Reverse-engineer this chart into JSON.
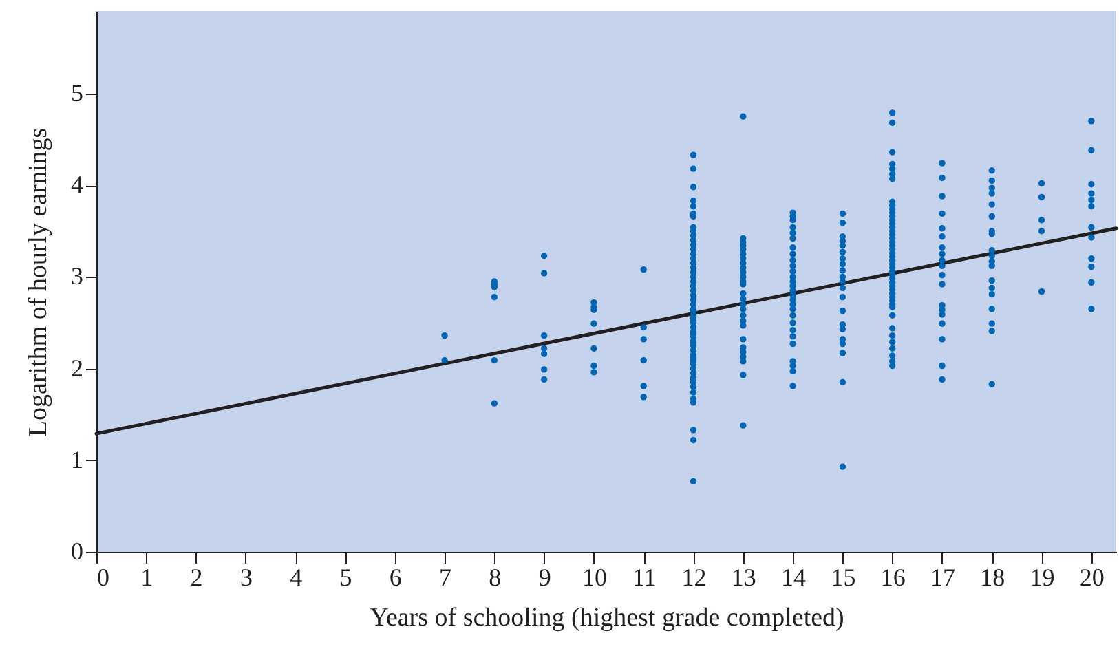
{
  "chart_data": {
    "type": "scatter",
    "xlabel": "Years of schooling (highest grade completed)",
    "ylabel": "Logarithm of hourly earnings",
    "xlim": [
      0,
      20.5
    ],
    "ylim": [
      0,
      5.9
    ],
    "xticks": [
      0,
      1,
      2,
      3,
      4,
      5,
      6,
      7,
      8,
      9,
      10,
      11,
      12,
      13,
      14,
      15,
      16,
      17,
      18,
      19,
      20
    ],
    "yticks": [
      {
        "value": 0,
        "label": "0"
      },
      {
        "value": 1,
        "label": "1"
      },
      {
        "value": 2,
        "label": "2"
      },
      {
        "value": 3,
        "label": "3"
      },
      {
        "value": 4,
        "label": "4"
      },
      {
        "value": 5,
        "label": "5"
      }
    ],
    "grid": false,
    "series": [
      {
        "color": "#0066b3",
        "marker": "circle",
        "x": [
          7,
          7,
          8,
          8,
          8,
          8,
          8,
          8,
          9,
          9,
          9,
          9,
          9,
          9,
          9,
          10,
          10,
          10,
          10,
          10,
          10,
          10,
          11,
          11,
          11,
          11,
          11,
          11,
          12,
          12,
          12,
          12,
          12,
          12,
          12,
          12,
          12,
          12,
          12,
          12,
          12,
          12,
          12,
          12,
          12,
          12,
          12,
          12,
          12,
          12,
          12,
          12,
          12,
          12,
          12,
          12,
          12,
          12,
          12,
          12,
          12,
          12,
          12,
          12,
          12,
          12,
          12,
          12,
          12,
          12,
          12,
          12,
          12,
          12,
          12,
          12,
          12,
          12,
          12,
          12,
          12,
          12,
          12,
          12,
          12,
          13,
          13,
          13,
          13,
          13,
          13,
          13,
          13,
          13,
          13,
          13,
          13,
          13,
          13,
          13,
          13,
          13,
          13,
          13,
          13,
          13,
          13,
          13,
          13,
          13,
          13,
          13,
          14,
          14,
          14,
          14,
          14,
          14,
          14,
          14,
          14,
          14,
          14,
          14,
          14,
          14,
          14,
          14,
          14,
          14,
          14,
          14,
          14,
          14,
          14,
          14,
          14,
          14,
          14,
          14,
          15,
          15,
          15,
          15,
          15,
          15,
          15,
          15,
          15,
          15,
          15,
          15,
          15,
          15,
          15,
          15,
          15,
          15,
          15,
          15,
          15,
          16,
          16,
          16,
          16,
          16,
          16,
          16,
          16,
          16,
          16,
          16,
          16,
          16,
          16,
          16,
          16,
          16,
          16,
          16,
          16,
          16,
          16,
          16,
          16,
          16,
          16,
          16,
          16,
          16,
          16,
          16,
          16,
          16,
          16,
          16,
          16,
          16,
          16,
          16,
          16,
          16,
          16,
          16,
          16,
          16,
          17,
          17,
          17,
          17,
          17,
          17,
          17,
          17,
          17,
          17,
          17,
          17,
          17,
          17,
          17,
          17,
          17,
          17,
          17,
          18,
          18,
          18,
          18,
          18,
          18,
          18,
          18,
          18,
          18,
          18,
          18,
          18,
          18,
          18,
          18,
          18,
          18,
          18,
          19,
          19,
          19,
          19,
          19,
          20,
          20,
          20,
          20,
          20,
          20,
          20,
          20,
          20,
          20,
          20,
          20
        ],
        "values": [
          2.36,
          2.09,
          2.95,
          2.92,
          2.89,
          2.78,
          2.09,
          1.62,
          3.23,
          3.04,
          2.36,
          2.22,
          2.16,
          1.99,
          1.88,
          2.72,
          2.67,
          2.64,
          2.49,
          2.22,
          2.03,
          1.96,
          3.08,
          2.45,
          2.32,
          2.09,
          1.81,
          1.69,
          4.33,
          4.18,
          3.98,
          3.83,
          3.77,
          3.69,
          3.66,
          3.54,
          3.5,
          3.45,
          3.4,
          3.35,
          3.3,
          3.25,
          3.2,
          3.15,
          3.1,
          3.05,
          3.0,
          2.95,
          2.9,
          2.85,
          2.8,
          2.75,
          2.7,
          2.65,
          2.6,
          2.55,
          2.5,
          2.45,
          2.4,
          2.35,
          2.3,
          2.25,
          2.2,
          2.15,
          2.1,
          2.05,
          2.0,
          1.95,
          1.9,
          1.8,
          1.74,
          1.67,
          1.63,
          1.33,
          1.22,
          0.77,
          1.85,
          1.88,
          2.62,
          2.58,
          2.52,
          2.38,
          2.28,
          2.12,
          2.08,
          4.75,
          3.42,
          3.38,
          3.34,
          3.3,
          3.25,
          3.2,
          3.15,
          3.1,
          3.05,
          3.0,
          2.95,
          2.92,
          2.82,
          2.76,
          2.7,
          2.65,
          2.58,
          2.52,
          2.47,
          2.32,
          2.23,
          2.18,
          2.13,
          2.08,
          1.93,
          1.38,
          3.7,
          3.66,
          3.62,
          3.54,
          3.48,
          3.42,
          3.32,
          3.25,
          3.18,
          3.12,
          3.06,
          3.0,
          2.95,
          2.9,
          2.85,
          2.8,
          2.75,
          2.7,
          2.65,
          2.58,
          2.5,
          2.42,
          2.35,
          2.27,
          2.08,
          2.03,
          1.97,
          1.81,
          3.69,
          3.59,
          3.44,
          3.39,
          3.34,
          3.27,
          3.2,
          3.14,
          3.07,
          3.0,
          2.95,
          2.78,
          2.63,
          2.48,
          2.43,
          2.32,
          2.27,
          2.17,
          1.85,
          0.93,
          2.88,
          4.79,
          4.68,
          4.36,
          4.23,
          4.18,
          4.12,
          4.07,
          3.82,
          3.78,
          3.74,
          3.7,
          3.66,
          3.62,
          3.58,
          3.54,
          3.5,
          3.46,
          3.42,
          3.38,
          3.34,
          3.3,
          3.26,
          3.22,
          3.18,
          3.14,
          3.1,
          3.06,
          3.02,
          2.98,
          2.94,
          2.9,
          2.86,
          2.82,
          2.78,
          2.74,
          2.7,
          2.67,
          2.58,
          2.44,
          2.36,
          2.29,
          2.22,
          2.14,
          2.08,
          2.03,
          4.24,
          4.08,
          3.88,
          3.69,
          3.53,
          3.44,
          3.32,
          3.25,
          3.18,
          3.12,
          3.02,
          2.92,
          2.69,
          2.64,
          2.59,
          2.49,
          2.32,
          2.03,
          1.88,
          4.16,
          4.05,
          3.97,
          3.91,
          3.79,
          3.66,
          3.5,
          3.47,
          3.29,
          3.23,
          3.17,
          3.12,
          2.96,
          2.88,
          2.81,
          2.65,
          2.49,
          2.41,
          1.83,
          4.02,
          3.87,
          3.62,
          3.5,
          2.84,
          4.7,
          4.38,
          4.01,
          3.91,
          3.84,
          3.77,
          3.54,
          3.43,
          3.2,
          3.11,
          2.94,
          2.65
        ]
      },
      {
        "type": "line",
        "color": "#231f20",
        "x": [
          0,
          20.5
        ],
        "values": [
          1.29,
          3.53
        ]
      }
    ]
  }
}
